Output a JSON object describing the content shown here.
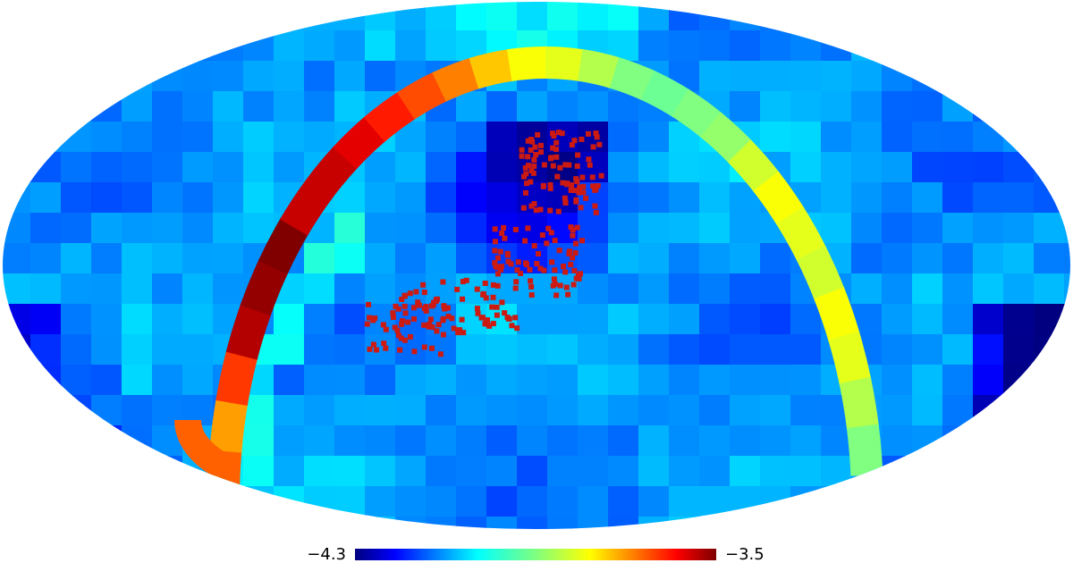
{
  "map": {
    "projection": "mollweide",
    "colormap": "jet",
    "colorbar": {
      "min_label": "−4.3",
      "max_label": "−3.5",
      "min": -4.3,
      "max": -3.5
    },
    "marker_color": "#cc1a12"
  }
}
